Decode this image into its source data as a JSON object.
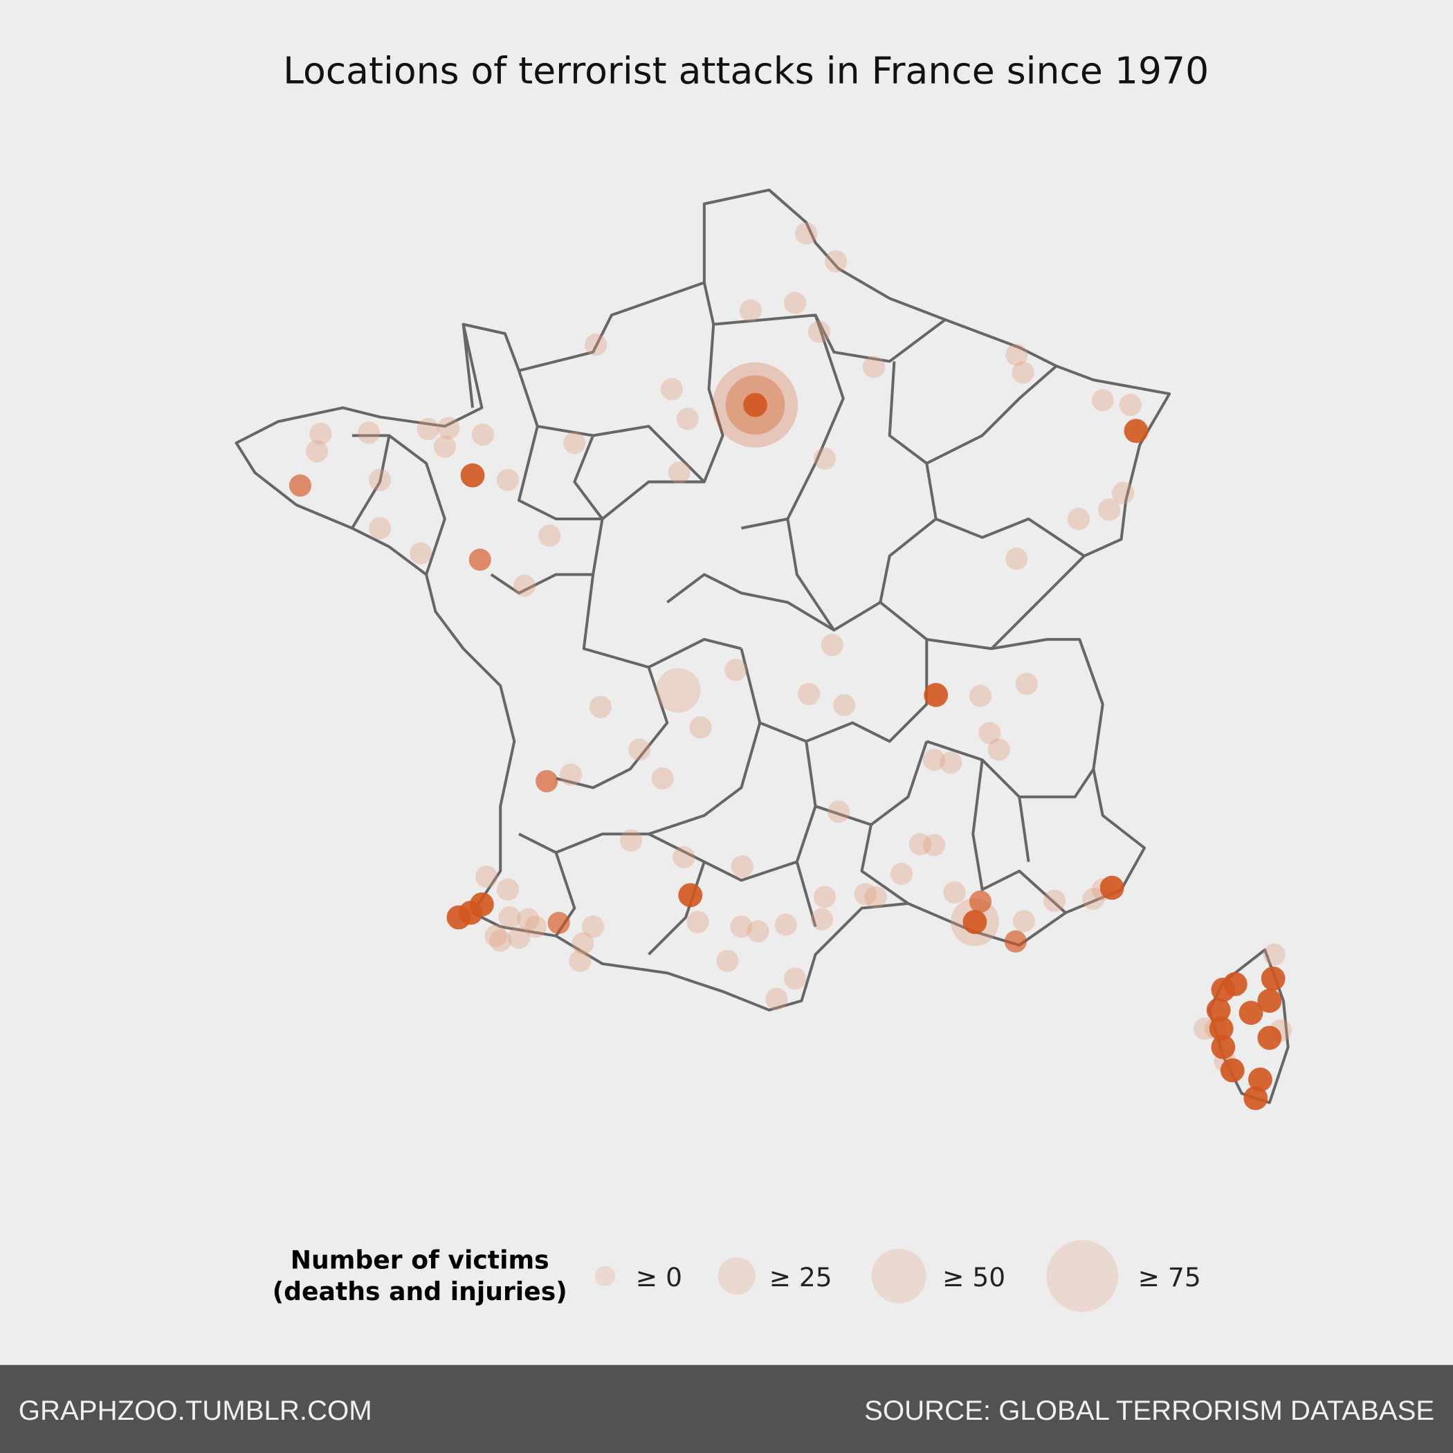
{
  "title": "Locations of terrorist attacks in France since 1970",
  "legend": {
    "title": [
      "Number of victims",
      "(deaths and injuries)"
    ],
    "items": [
      {
        "label": "≥ 0",
        "value": 0
      },
      {
        "label": "≥ 25",
        "value": 25
      },
      {
        "label": "≥ 50",
        "value": 50
      },
      {
        "label": "≥ 75",
        "value": 75
      }
    ]
  },
  "footer": {
    "left": "GRAPHZOO.TUMBLR.COM",
    "right": "SOURCE: GLOBAL TERRORISM DATABASE"
  }
}
